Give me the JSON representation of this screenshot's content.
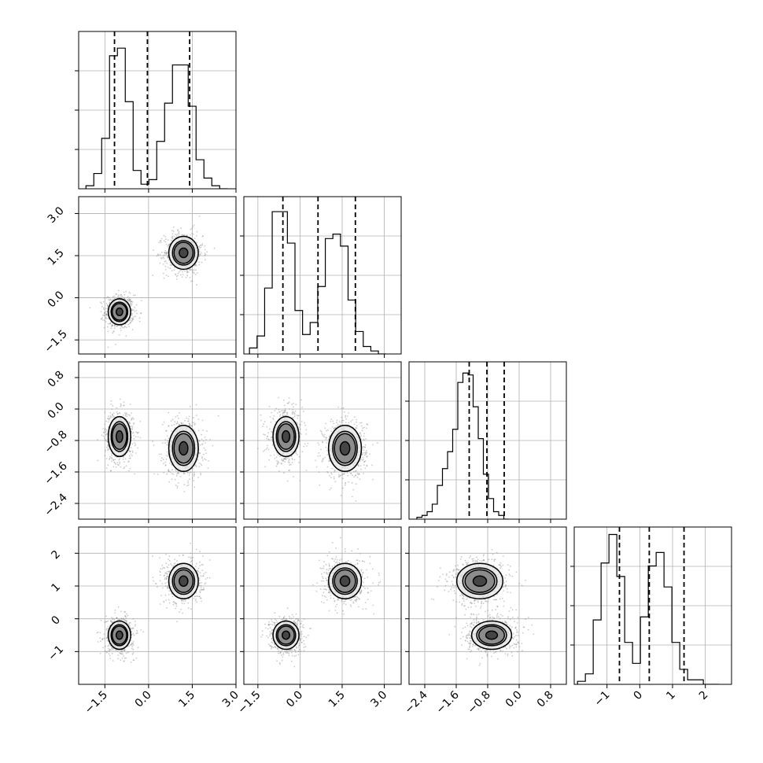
{
  "chart_data": {
    "type": "corner",
    "parameters": 4,
    "grid": true,
    "colors": {
      "ink": "#000000",
      "grid": "#b0b0b0",
      "scatter": "#8c8c8c"
    },
    "axes": [
      {
        "range": [
          -2.4,
          3.0
        ],
        "ticks": [
          -1.5,
          0.0,
          1.5,
          3.0
        ],
        "tick_labels": [
          "−1.5",
          "0.0",
          "1.5",
          "3.0"
        ]
      },
      {
        "range": [
          -2.0,
          3.6
        ],
        "ticks": [
          -1.5,
          0.0,
          1.5,
          3.0
        ],
        "tick_labels": [
          "−1.5",
          "0.0",
          "1.5",
          "3.0"
        ]
      },
      {
        "range": [
          -2.8,
          1.2
        ],
        "ticks": [
          -2.4,
          -1.6,
          -0.8,
          0.0,
          0.8
        ],
        "tick_labels": [
          "−2.4",
          "−1.6",
          "−0.8",
          "0.0",
          "0.8"
        ]
      },
      {
        "range": [
          -2.0,
          2.8
        ],
        "ticks": [
          -1,
          0,
          1,
          2
        ],
        "tick_labels": [
          "−1",
          "0",
          "1",
          "2"
        ]
      }
    ],
    "marginals": [
      {
        "bins_from": -2.15,
        "bin_width": 0.27,
        "peak": 0.98,
        "counts": [
          0.02,
          0.1,
          0.33,
          0.87,
          0.92,
          0.57,
          0.12,
          0.03,
          0.06,
          0.31,
          0.56,
          0.81,
          0.81,
          0.54,
          0.19,
          0.07,
          0.02,
          0.0
        ],
        "quantiles": [
          -1.17,
          -0.04,
          1.41
        ]
      },
      {
        "bins_from": -1.8,
        "bin_width": 0.27,
        "peak": 1.0,
        "counts": [
          0.04,
          0.12,
          0.44,
          0.95,
          0.95,
          0.74,
          0.29,
          0.13,
          0.21,
          0.45,
          0.77,
          0.8,
          0.72,
          0.36,
          0.15,
          0.05,
          0.02,
          0.0
        ],
        "quantiles": [
          -0.61,
          0.64,
          1.97
        ]
      },
      {
        "bins_from": -2.6,
        "bin_width": 0.13,
        "peak": 0.8,
        "counts": [
          0.01,
          0.02,
          0.04,
          0.08,
          0.18,
          0.27,
          0.36,
          0.48,
          0.73,
          0.78,
          0.77,
          0.6,
          0.43,
          0.24,
          0.11,
          0.04,
          0.02,
          0.0
        ],
        "quantiles": [
          -1.27,
          -0.82,
          -0.38
        ]
      },
      {
        "bins_from": -1.9,
        "bin_width": 0.24,
        "peak": 1.0,
        "counts": [
          0.02,
          0.07,
          0.43,
          0.81,
          1.0,
          0.72,
          0.28,
          0.14,
          0.45,
          0.79,
          0.88,
          0.65,
          0.28,
          0.1,
          0.03,
          0.03,
          0.0,
          0.0
        ],
        "quantiles": [
          -0.62,
          0.29,
          1.35
        ]
      }
    ],
    "modes": [
      {
        "weight": 0.5,
        "center": [
          -1.0,
          -0.5,
          -0.7,
          -0.5
        ],
        "sigma": [
          0.25,
          0.3,
          0.33,
          0.28
        ]
      },
      {
        "weight": 0.5,
        "center": [
          1.2,
          1.6,
          -1.0,
          1.15
        ],
        "sigma": [
          0.33,
          0.38,
          0.38,
          0.35
        ]
      }
    ],
    "contour_levels": [
      0.39,
      0.86,
      1.0,
      1.34
    ]
  }
}
